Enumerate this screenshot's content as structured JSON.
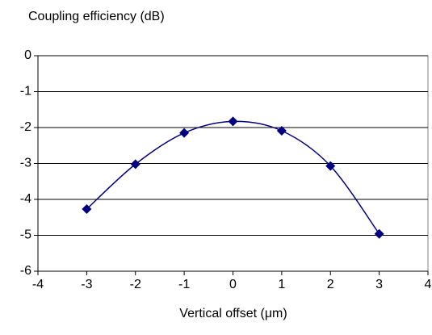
{
  "chart_data": {
    "type": "scatter",
    "title": "Coupling efficiency (dB)",
    "x_label": "Vertical offset (μm)",
    "x": [
      -3,
      -2,
      -1,
      0,
      1,
      2,
      3
    ],
    "series": [
      {
        "color": "#000080",
        "values": [
          -4.27,
          -3.02,
          -2.15,
          -1.83,
          -2.09,
          -3.07,
          -4.96
        ]
      }
    ],
    "xlim": [
      -4,
      4
    ],
    "xticks": [
      -4,
      -3,
      -2,
      -1,
      0,
      1,
      2,
      3,
      4
    ],
    "ylim": [
      -6,
      0
    ],
    "yticks": [
      0,
      -1,
      -2,
      -3,
      -4,
      -5,
      -6
    ],
    "grid": true,
    "smooth": true
  }
}
